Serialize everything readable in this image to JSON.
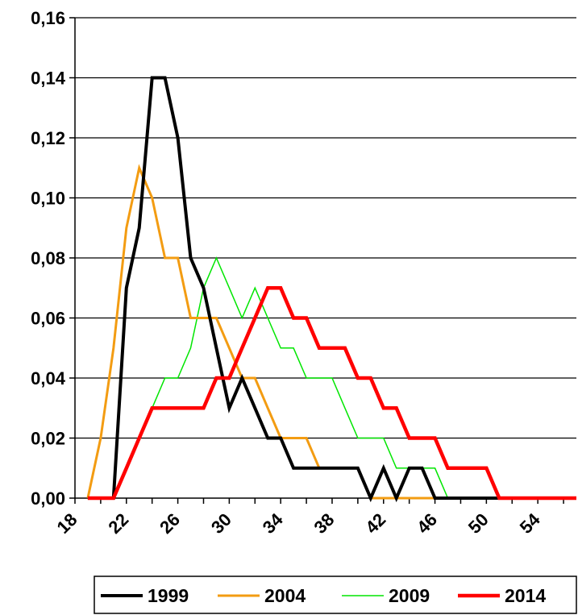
{
  "chart_data": {
    "type": "line",
    "title": "",
    "xlabel": "",
    "ylabel": "",
    "x": [
      19,
      20,
      21,
      22,
      23,
      24,
      25,
      26,
      27,
      28,
      29,
      30,
      31,
      32,
      33,
      34,
      35,
      36,
      37,
      38,
      39,
      40,
      41,
      42,
      43,
      44,
      45,
      46,
      47,
      48,
      49,
      50,
      51,
      52,
      53,
      54,
      55,
      56,
      57
    ],
    "xlim": [
      18,
      57
    ],
    "ylim": [
      0,
      0.16
    ],
    "x_ticks": [
      {
        "value": 18,
        "label": "18"
      },
      {
        "value": 22,
        "label": "22"
      },
      {
        "value": 26,
        "label": "26"
      },
      {
        "value": 30,
        "label": "30"
      },
      {
        "value": 34,
        "label": "34"
      },
      {
        "value": 38,
        "label": "38"
      },
      {
        "value": 42,
        "label": "42"
      },
      {
        "value": 46,
        "label": "46"
      },
      {
        "value": 50,
        "label": "50"
      },
      {
        "value": 54,
        "label": "54"
      }
    ],
    "y_ticks": [
      {
        "value": 0,
        "label": "0,00"
      },
      {
        "value": 0.02,
        "label": "0,02"
      },
      {
        "value": 0.04,
        "label": "0,04"
      },
      {
        "value": 0.06,
        "label": "0,06"
      },
      {
        "value": 0.08,
        "label": "0,08"
      },
      {
        "value": 0.1,
        "label": "0,10"
      },
      {
        "value": 0.12,
        "label": "0,12"
      },
      {
        "value": 0.14,
        "label": "0,14"
      },
      {
        "value": 0.16,
        "label": "0,16"
      }
    ],
    "grid": {
      "horizontal": true,
      "vertical": false
    },
    "legend_position": "bottom",
    "series": [
      {
        "name": "1999",
        "color": "#000000",
        "width": 4,
        "values": [
          0,
          0,
          0,
          0.07,
          0.09,
          0.14,
          0.14,
          0.12,
          0.08,
          0.07,
          0.05,
          0.03,
          0.04,
          0.03,
          0.02,
          0.02,
          0.01,
          0.01,
          0.01,
          0.01,
          0.01,
          0.01,
          0,
          0.01,
          0,
          0.01,
          0.01,
          0,
          0,
          0,
          0,
          0,
          0,
          0,
          0,
          0,
          0,
          0,
          0
        ]
      },
      {
        "name": "2004",
        "color": "#F39C12",
        "width": 3,
        "values": [
          0,
          0.02,
          0.05,
          0.09,
          0.11,
          0.1,
          0.08,
          0.08,
          0.06,
          0.06,
          0.06,
          0.05,
          0.04,
          0.04,
          0.03,
          0.02,
          0.02,
          0.02,
          0.01,
          0.01,
          0.01,
          0.01,
          0,
          0,
          0,
          0,
          0,
          0,
          0,
          0,
          0,
          0,
          0,
          0,
          0,
          0,
          0,
          0,
          0
        ]
      },
      {
        "name": "2009",
        "color": "#00E600",
        "width": 1.5,
        "values": [
          0,
          0,
          0,
          0.01,
          0.02,
          0.03,
          0.04,
          0.04,
          0.05,
          0.07,
          0.08,
          0.07,
          0.06,
          0.07,
          0.06,
          0.05,
          0.05,
          0.04,
          0.04,
          0.04,
          0.03,
          0.02,
          0.02,
          0.02,
          0.01,
          0.01,
          0.01,
          0.01,
          0,
          0,
          0,
          0,
          0,
          0,
          0,
          0,
          0,
          0,
          0
        ]
      },
      {
        "name": "2014",
        "color": "#FF0000",
        "width": 4.5,
        "values": [
          0,
          0,
          0,
          0.01,
          0.02,
          0.03,
          0.03,
          0.03,
          0.03,
          0.03,
          0.04,
          0.04,
          0.05,
          0.06,
          0.07,
          0.07,
          0.06,
          0.06,
          0.05,
          0.05,
          0.05,
          0.04,
          0.04,
          0.03,
          0.03,
          0.02,
          0.02,
          0.02,
          0.01,
          0.01,
          0.01,
          0.01,
          0,
          0,
          0,
          0,
          0,
          0,
          0
        ]
      }
    ]
  }
}
